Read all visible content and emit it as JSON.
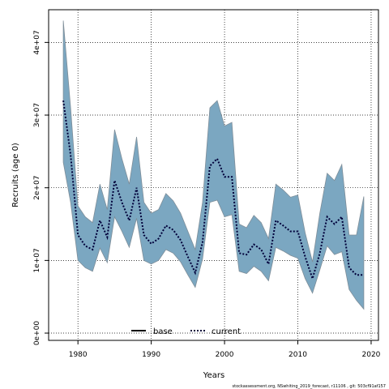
{
  "chart_data": {
    "type": "area",
    "xlabel": "Years",
    "ylabel": "Recruits (age 0)",
    "xlim": [
      1976,
      2021
    ],
    "ylim": [
      -1000000,
      44500000
    ],
    "x_ticks": [
      1980,
      1990,
      2000,
      2010,
      2020
    ],
    "x_tick_labels": [
      "1980",
      "1990",
      "2000",
      "2010",
      "2020"
    ],
    "y_ticks": [
      0,
      10000000,
      20000000,
      30000000,
      40000000
    ],
    "y_tick_labels": [
      "0e+00",
      "1e+07",
      "2e+07",
      "3e+07",
      "4e+07"
    ],
    "grid": true,
    "legend": {
      "placement": "bottom-center",
      "entries": [
        "base",
        "current"
      ]
    },
    "years": [
      1978,
      1979,
      1980,
      1981,
      1982,
      1983,
      1984,
      1985,
      1986,
      1987,
      1988,
      1989,
      1990,
      1991,
      1992,
      1993,
      1994,
      1995,
      1996,
      1997,
      1998,
      1999,
      2000,
      2001,
      2002,
      2003,
      2004,
      2005,
      2006,
      2007,
      2008,
      2009,
      2010,
      2011,
      2012,
      2013,
      2014,
      2015,
      2016,
      2017,
      2018,
      2019
    ],
    "series": [
      {
        "name": "current",
        "style": "dotted",
        "values": [
          32000000,
          24500000,
          13500000,
          12000000,
          11500000,
          15500000,
          13200000,
          21000000,
          18000000,
          15500000,
          20000000,
          13500000,
          12300000,
          13000000,
          14800000,
          14200000,
          12800000,
          10500000,
          8300000,
          12500000,
          23000000,
          24000000,
          21500000,
          21500000,
          11000000,
          10800000,
          12200000,
          11500000,
          9500000,
          15500000,
          14800000,
          14000000,
          14000000,
          10500000,
          7500000,
          11000000,
          16000000,
          15000000,
          16000000,
          9000000,
          8000000,
          8000000
        ]
      },
      {
        "name": "base",
        "style": "solid",
        "values": []
      }
    ],
    "band": {
      "upper": [
        43000000,
        31000000,
        17500000,
        16000000,
        15200000,
        20500000,
        17000000,
        28000000,
        24000000,
        20500000,
        27000000,
        18000000,
        16500000,
        17000000,
        19200000,
        18200000,
        16500000,
        14000000,
        11500000,
        18000000,
        31000000,
        32000000,
        28500000,
        29000000,
        15000000,
        14500000,
        16200000,
        15200000,
        13000000,
        20500000,
        19700000,
        18700000,
        19000000,
        13800000,
        9800000,
        16500000,
        22000000,
        21000000,
        23200000,
        13500000,
        13500000,
        18800000
      ],
      "lower": [
        23500000,
        18000000,
        10000000,
        9000000,
        8500000,
        11700000,
        9700000,
        16000000,
        14000000,
        11800000,
        15800000,
        10000000,
        9500000,
        10000000,
        11500000,
        11000000,
        9800000,
        8000000,
        6300000,
        10200000,
        18000000,
        18300000,
        16000000,
        16300000,
        8500000,
        8200000,
        9200000,
        8500000,
        7200000,
        11800000,
        11300000,
        10700000,
        10300000,
        7500000,
        5500000,
        8700000,
        12000000,
        10800000,
        11200000,
        6000000,
        4500000,
        3300000
      ]
    },
    "colors": {
      "band_fill": "#7ba7c1",
      "band_stroke": "#7f8e99",
      "current_line": "#00003a",
      "base_line": "#000000"
    }
  },
  "footer": {
    "text": "stockassessment.org, NSwhiting_2019_forecast, r11106 , git: 503cf91af157"
  }
}
